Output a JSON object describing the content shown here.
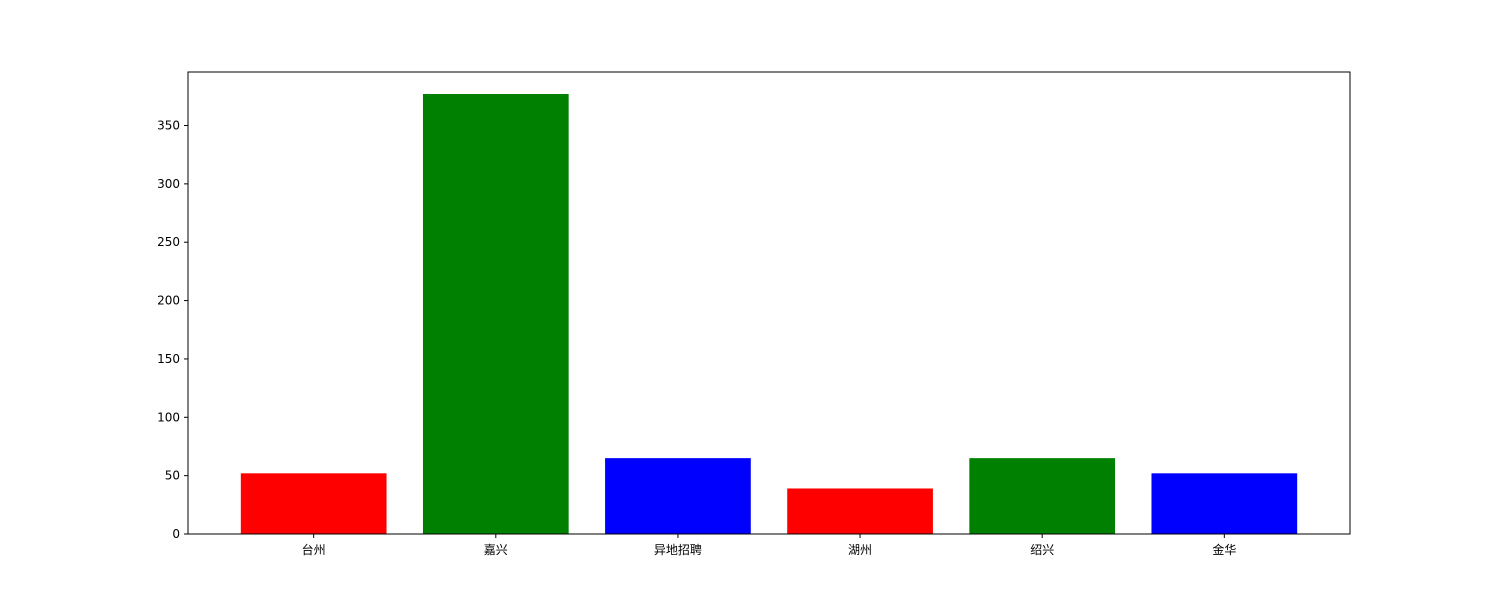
{
  "chart_data": {
    "type": "bar",
    "categories": [
      "台州",
      "嘉兴",
      "异地招聘",
      "湖州",
      "绍兴",
      "金华"
    ],
    "values": [
      52,
      377,
      65,
      39,
      65,
      52
    ],
    "bar_colors": [
      "#ff0000",
      "#008000",
      "#0000ff",
      "#ff0000",
      "#008000",
      "#0000ff"
    ],
    "title": "",
    "xlabel": "",
    "ylabel": "",
    "ylim": [
      0,
      395.85
    ],
    "yticks": [
      0,
      50,
      100,
      150,
      200,
      250,
      300,
      350
    ],
    "grid": false,
    "legend": "none"
  }
}
